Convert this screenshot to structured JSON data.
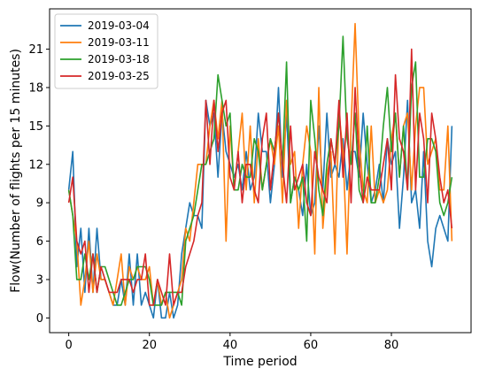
{
  "chart_data": {
    "type": "line",
    "title": "",
    "xlabel": "Time period",
    "ylabel": "Flow(Number of flights per 15 minutes)",
    "xlim": [
      -4.75,
      99.75
    ],
    "ylim": [
      -1.15,
      24.15
    ],
    "xticks": [
      0,
      20,
      40,
      60,
      80
    ],
    "yticks": [
      0,
      3,
      6,
      9,
      12,
      15,
      18,
      21
    ],
    "grid": false,
    "legend_position": "top-left",
    "x": [
      0,
      1,
      2,
      3,
      4,
      5,
      6,
      7,
      8,
      9,
      10,
      11,
      12,
      13,
      14,
      15,
      16,
      17,
      18,
      19,
      20,
      21,
      22,
      23,
      24,
      25,
      26,
      27,
      28,
      29,
      30,
      31,
      32,
      33,
      34,
      35,
      36,
      37,
      38,
      39,
      40,
      41,
      42,
      43,
      44,
      45,
      46,
      47,
      48,
      49,
      50,
      51,
      52,
      53,
      54,
      55,
      56,
      57,
      58,
      59,
      60,
      61,
      62,
      63,
      64,
      65,
      66,
      67,
      68,
      69,
      70,
      71,
      72,
      73,
      74,
      75,
      76,
      77,
      78,
      79,
      80,
      81,
      82,
      83,
      84,
      85,
      86,
      87,
      88,
      89,
      90,
      91,
      92,
      93,
      94,
      95
    ],
    "series": [
      {
        "name": "2019-03-04",
        "color": "#1f77b4",
        "values": [
          10,
          13,
          4,
          7,
          2,
          7,
          2,
          7,
          3,
          3,
          2,
          1,
          1,
          3,
          1,
          5,
          1,
          5,
          1,
          2,
          1,
          0,
          3,
          0,
          0,
          2,
          0,
          1,
          5,
          7,
          9,
          8,
          8,
          7,
          17,
          15,
          16,
          11,
          16,
          13,
          12,
          11,
          12,
          10,
          13,
          10,
          11,
          16,
          13,
          13,
          9,
          12,
          18,
          11,
          16,
          9,
          11,
          10,
          8,
          12,
          8,
          9,
          15,
          10,
          16,
          11,
          12,
          11,
          14,
          10,
          13,
          13,
          11,
          16,
          12,
          9,
          10,
          12,
          9,
          14,
          12,
          13,
          7,
          11,
          17,
          9,
          10,
          7,
          13,
          6,
          4,
          7,
          8,
          7,
          6,
          15
        ]
      },
      {
        "name": "2019-03-11",
        "color": "#ff7f0e",
        "values": [
          10,
          8,
          6,
          1,
          3,
          6,
          2,
          5,
          3,
          3,
          2,
          1,
          3,
          5,
          1,
          4,
          3,
          4,
          3,
          3,
          4,
          1,
          3,
          1,
          2,
          0,
          1,
          2,
          3,
          7,
          6,
          9,
          12,
          12,
          12,
          15,
          17,
          14,
          17,
          6,
          15,
          10,
          13,
          16,
          10,
          15,
          9,
          14,
          10,
          12,
          14,
          12,
          15,
          9,
          17,
          12,
          13,
          7,
          12,
          15,
          13,
          5,
          18,
          7,
          11,
          13,
          5,
          16,
          13,
          5,
          15,
          23,
          14,
          10,
          9,
          15,
          9,
          10,
          9,
          10,
          14,
          16,
          11,
          15,
          16,
          10,
          15,
          18,
          18,
          12,
          13,
          14,
          10,
          10,
          15,
          6
        ]
      },
      {
        "name": "2019-03-18",
        "color": "#2ca02c",
        "values": [
          10,
          8,
          3,
          3,
          5,
          3,
          5,
          2,
          4,
          4,
          3,
          2,
          1,
          1,
          2,
          3,
          3,
          4,
          4,
          4,
          3,
          1,
          1,
          1,
          2,
          2,
          2,
          2,
          1,
          6,
          7,
          8,
          10,
          12,
          12,
          13,
          14,
          19,
          17,
          15,
          16,
          10,
          10,
          12,
          11,
          11,
          14,
          13,
          10,
          12,
          14,
          13,
          16,
          12,
          20,
          9,
          11,
          10,
          11,
          6,
          17,
          14,
          10,
          8,
          12,
          14,
          12,
          15,
          22,
          14,
          12,
          16,
          10,
          9,
          15,
          9,
          9,
          11,
          15,
          18,
          13,
          16,
          11,
          15,
          10,
          18,
          20,
          11,
          11,
          14,
          14,
          13,
          9,
          8,
          9,
          11
        ]
      },
      {
        "name": "2019-03-25",
        "color": "#d62728",
        "values": [
          9,
          11,
          6,
          5,
          6,
          2,
          5,
          2,
          4,
          3,
          2,
          2,
          2,
          3,
          3,
          3,
          2,
          3,
          3,
          5,
          1,
          1,
          3,
          2,
          1,
          5,
          1,
          2,
          2,
          4,
          5,
          6,
          8,
          9,
          17,
          12,
          17,
          13,
          16,
          17,
          11,
          10,
          13,
          9,
          12,
          12,
          10,
          9,
          14,
          16,
          10,
          13,
          16,
          12,
          9,
          15,
          10,
          11,
          12,
          9,
          8,
          13,
          11,
          10,
          9,
          14,
          12,
          17,
          11,
          16,
          9,
          18,
          12,
          9,
          11,
          10,
          10,
          10,
          12,
          14,
          10,
          19,
          14,
          13,
          10,
          21,
          10,
          16,
          14,
          9,
          16,
          14,
          11,
          9,
          10,
          7
        ]
      }
    ]
  }
}
